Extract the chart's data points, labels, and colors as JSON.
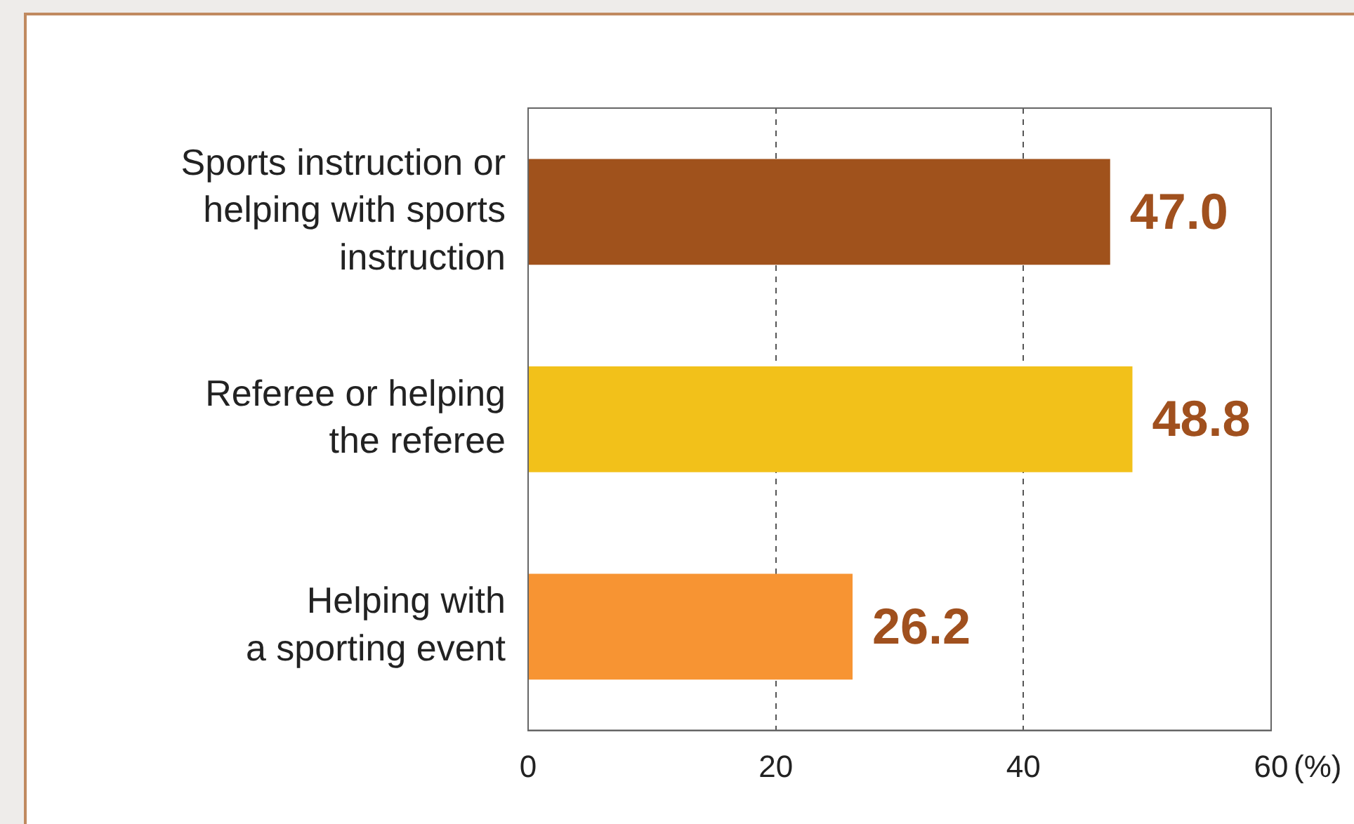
{
  "chart_data": {
    "type": "bar",
    "orientation": "horizontal",
    "categories": [
      "Sports instruction or\nhelping with sports\ninstruction",
      "Referee or helping\nthe referee",
      "Helping with\na sporting event"
    ],
    "values": [
      47.0,
      48.8,
      26.2
    ],
    "colors": [
      "#a0521c",
      "#f2c11a",
      "#f79433"
    ],
    "value_labels": [
      "47.0",
      "48.8",
      "26.2"
    ],
    "xlabel": "(%)",
    "xlim": [
      0,
      60
    ],
    "xticks": [
      0,
      20,
      40,
      60
    ],
    "grid": "x"
  }
}
